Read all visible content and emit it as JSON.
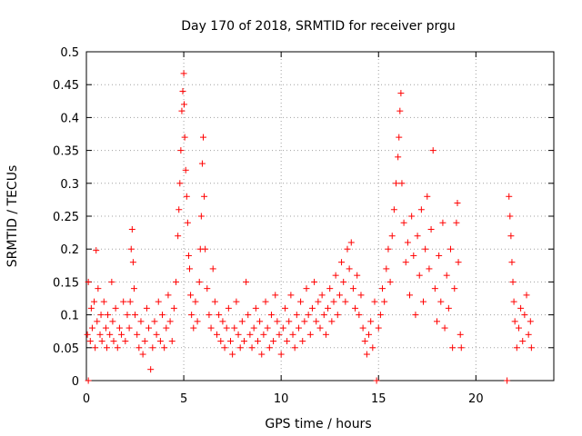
{
  "chart_data": {
    "type": "scatter",
    "title": "Day 170 of 2018, SRMTID for receiver prgu",
    "xlabel": "GPS time / hours",
    "ylabel": "SRMTID / TECUs",
    "xlim": [
      0,
      24
    ],
    "ylim": [
      0,
      0.5
    ],
    "x_ticks": [
      0,
      5,
      10,
      15,
      20
    ],
    "x_tick_labels": [
      "0",
      "5",
      "10",
      "15",
      "20"
    ],
    "y_ticks": [
      0,
      0.05,
      0.1,
      0.15,
      0.2,
      0.25,
      0.3,
      0.35,
      0.4,
      0.45,
      0.5
    ],
    "y_tick_labels": [
      "0",
      "0.05",
      "0.1",
      "0.15",
      "0.2",
      "0.25",
      "0.3",
      "0.35",
      "0.4",
      "0.45",
      "0.5"
    ],
    "grid": true,
    "marker": "plus",
    "color": "#ff0000",
    "series": [
      {
        "name": "SRMTID",
        "points": [
          [
            0.05,
            0.07
          ],
          [
            0.1,
            0.15
          ],
          [
            0.1,
            0.0
          ],
          [
            0.2,
            0.06
          ],
          [
            0.25,
            0.11
          ],
          [
            0.3,
            0.08
          ],
          [
            0.4,
            0.12
          ],
          [
            0.45,
            0.05
          ],
          [
            0.5,
            0.198
          ],
          [
            0.55,
            0.09
          ],
          [
            0.6,
            0.14
          ],
          [
            0.7,
            0.07
          ],
          [
            0.75,
            0.1
          ],
          [
            0.8,
            0.06
          ],
          [
            0.9,
            0.12
          ],
          [
            1.0,
            0.08
          ],
          [
            1.05,
            0.05
          ],
          [
            1.1,
            0.1
          ],
          [
            1.2,
            0.07
          ],
          [
            1.3,
            0.15
          ],
          [
            1.35,
            0.09
          ],
          [
            1.4,
            0.06
          ],
          [
            1.5,
            0.11
          ],
          [
            1.6,
            0.05
          ],
          [
            1.7,
            0.08
          ],
          [
            1.8,
            0.07
          ],
          [
            1.9,
            0.12
          ],
          [
            2.0,
            0.06
          ],
          [
            2.1,
            0.1
          ],
          [
            2.2,
            0.08
          ],
          [
            2.25,
            0.12
          ],
          [
            2.3,
            0.2
          ],
          [
            2.35,
            0.23
          ],
          [
            2.4,
            0.18
          ],
          [
            2.45,
            0.14
          ],
          [
            2.5,
            0.1
          ],
          [
            2.6,
            0.07
          ],
          [
            2.7,
            0.05
          ],
          [
            2.8,
            0.09
          ],
          [
            2.9,
            0.04
          ],
          [
            3.0,
            0.06
          ],
          [
            3.1,
            0.11
          ],
          [
            3.2,
            0.08
          ],
          [
            3.3,
            0.017
          ],
          [
            3.4,
            0.05
          ],
          [
            3.5,
            0.09
          ],
          [
            3.6,
            0.07
          ],
          [
            3.7,
            0.12
          ],
          [
            3.8,
            0.06
          ],
          [
            3.9,
            0.1
          ],
          [
            4.0,
            0.05
          ],
          [
            4.1,
            0.08
          ],
          [
            4.2,
            0.13
          ],
          [
            4.3,
            0.09
          ],
          [
            4.4,
            0.06
          ],
          [
            4.5,
            0.11
          ],
          [
            4.6,
            0.15
          ],
          [
            4.7,
            0.22
          ],
          [
            4.75,
            0.26
          ],
          [
            4.8,
            0.3
          ],
          [
            4.85,
            0.35
          ],
          [
            4.9,
            0.41
          ],
          [
            4.95,
            0.44
          ],
          [
            5.0,
            0.467
          ],
          [
            5.02,
            0.42
          ],
          [
            5.05,
            0.37
          ],
          [
            5.1,
            0.32
          ],
          [
            5.15,
            0.28
          ],
          [
            5.2,
            0.24
          ],
          [
            5.25,
            0.19
          ],
          [
            5.3,
            0.17
          ],
          [
            5.35,
            0.13
          ],
          [
            5.4,
            0.1
          ],
          [
            5.5,
            0.08
          ],
          [
            5.6,
            0.12
          ],
          [
            5.7,
            0.09
          ],
          [
            5.8,
            0.15
          ],
          [
            5.85,
            0.2
          ],
          [
            5.9,
            0.25
          ],
          [
            5.95,
            0.33
          ],
          [
            6.0,
            0.37
          ],
          [
            6.05,
            0.28
          ],
          [
            6.1,
            0.2
          ],
          [
            6.2,
            0.14
          ],
          [
            6.3,
            0.1
          ],
          [
            6.4,
            0.08
          ],
          [
            6.5,
            0.17
          ],
          [
            6.6,
            0.12
          ],
          [
            6.7,
            0.07
          ],
          [
            6.8,
            0.1
          ],
          [
            6.9,
            0.06
          ],
          [
            7.0,
            0.09
          ],
          [
            7.1,
            0.05
          ],
          [
            7.2,
            0.08
          ],
          [
            7.3,
            0.11
          ],
          [
            7.4,
            0.06
          ],
          [
            7.5,
            0.04
          ],
          [
            7.6,
            0.08
          ],
          [
            7.7,
            0.12
          ],
          [
            7.8,
            0.07
          ],
          [
            7.9,
            0.05
          ],
          [
            8.0,
            0.09
          ],
          [
            8.1,
            0.06
          ],
          [
            8.2,
            0.15
          ],
          [
            8.3,
            0.1
          ],
          [
            8.4,
            0.07
          ],
          [
            8.5,
            0.05
          ],
          [
            8.6,
            0.08
          ],
          [
            8.7,
            0.11
          ],
          [
            8.8,
            0.06
          ],
          [
            8.9,
            0.09
          ],
          [
            9.0,
            0.04
          ],
          [
            9.1,
            0.07
          ],
          [
            9.2,
            0.12
          ],
          [
            9.3,
            0.08
          ],
          [
            9.4,
            0.05
          ],
          [
            9.5,
            0.1
          ],
          [
            9.6,
            0.06
          ],
          [
            9.7,
            0.13
          ],
          [
            9.8,
            0.09
          ],
          [
            9.9,
            0.07
          ],
          [
            10.0,
            0.04
          ],
          [
            10.1,
            0.08
          ],
          [
            10.2,
            0.11
          ],
          [
            10.3,
            0.06
          ],
          [
            10.4,
            0.09
          ],
          [
            10.5,
            0.13
          ],
          [
            10.6,
            0.07
          ],
          [
            10.7,
            0.05
          ],
          [
            10.8,
            0.1
          ],
          [
            10.9,
            0.08
          ],
          [
            11.0,
            0.12
          ],
          [
            11.1,
            0.06
          ],
          [
            11.2,
            0.09
          ],
          [
            11.3,
            0.14
          ],
          [
            11.4,
            0.1
          ],
          [
            11.5,
            0.07
          ],
          [
            11.6,
            0.11
          ],
          [
            11.7,
            0.15
          ],
          [
            11.8,
            0.09
          ],
          [
            11.9,
            0.12
          ],
          [
            12.0,
            0.08
          ],
          [
            12.1,
            0.13
          ],
          [
            12.2,
            0.1
          ],
          [
            12.3,
            0.07
          ],
          [
            12.4,
            0.11
          ],
          [
            12.5,
            0.14
          ],
          [
            12.6,
            0.09
          ],
          [
            12.7,
            0.12
          ],
          [
            12.8,
            0.16
          ],
          [
            12.9,
            0.1
          ],
          [
            13.0,
            0.13
          ],
          [
            13.1,
            0.18
          ],
          [
            13.2,
            0.15
          ],
          [
            13.3,
            0.12
          ],
          [
            13.4,
            0.2
          ],
          [
            13.5,
            0.17
          ],
          [
            13.6,
            0.21
          ],
          [
            13.7,
            0.14
          ],
          [
            13.8,
            0.11
          ],
          [
            13.9,
            0.16
          ],
          [
            14.0,
            0.1
          ],
          [
            14.1,
            0.13
          ],
          [
            14.2,
            0.08
          ],
          [
            14.3,
            0.06
          ],
          [
            14.4,
            0.04
          ],
          [
            14.5,
            0.07
          ],
          [
            14.6,
            0.09
          ],
          [
            14.7,
            0.05
          ],
          [
            14.8,
            0.12
          ],
          [
            14.9,
            0.0
          ],
          [
            15.0,
            0.08
          ],
          [
            15.1,
            0.1
          ],
          [
            15.2,
            0.14
          ],
          [
            15.3,
            0.12
          ],
          [
            15.4,
            0.17
          ],
          [
            15.5,
            0.2
          ],
          [
            15.6,
            0.15
          ],
          [
            15.7,
            0.22
          ],
          [
            15.8,
            0.26
          ],
          [
            15.9,
            0.3
          ],
          [
            16.0,
            0.34
          ],
          [
            16.05,
            0.37
          ],
          [
            16.1,
            0.41
          ],
          [
            16.15,
            0.437
          ],
          [
            16.2,
            0.3
          ],
          [
            16.3,
            0.24
          ],
          [
            16.4,
            0.18
          ],
          [
            16.5,
            0.21
          ],
          [
            16.6,
            0.13
          ],
          [
            16.7,
            0.25
          ],
          [
            16.8,
            0.19
          ],
          [
            16.9,
            0.1
          ],
          [
            17.0,
            0.22
          ],
          [
            17.1,
            0.16
          ],
          [
            17.2,
            0.26
          ],
          [
            17.3,
            0.12
          ],
          [
            17.4,
            0.2
          ],
          [
            17.5,
            0.28
          ],
          [
            17.6,
            0.17
          ],
          [
            17.7,
            0.23
          ],
          [
            17.8,
            0.35
          ],
          [
            17.9,
            0.14
          ],
          [
            18.0,
            0.09
          ],
          [
            18.1,
            0.19
          ],
          [
            18.2,
            0.12
          ],
          [
            18.3,
            0.24
          ],
          [
            18.4,
            0.08
          ],
          [
            18.5,
            0.16
          ],
          [
            18.6,
            0.11
          ],
          [
            18.7,
            0.2
          ],
          [
            18.8,
            0.05
          ],
          [
            18.9,
            0.14
          ],
          [
            19.0,
            0.24
          ],
          [
            19.05,
            0.27
          ],
          [
            19.1,
            0.18
          ],
          [
            19.2,
            0.07
          ],
          [
            19.25,
            0.05
          ],
          [
            21.6,
            0.0
          ],
          [
            21.7,
            0.28
          ],
          [
            21.75,
            0.25
          ],
          [
            21.8,
            0.22
          ],
          [
            21.85,
            0.18
          ],
          [
            21.9,
            0.15
          ],
          [
            21.95,
            0.12
          ],
          [
            22.0,
            0.09
          ],
          [
            22.1,
            0.05
          ],
          [
            22.2,
            0.08
          ],
          [
            22.3,
            0.11
          ],
          [
            22.4,
            0.06
          ],
          [
            22.5,
            0.1
          ],
          [
            22.6,
            0.13
          ],
          [
            22.7,
            0.07
          ],
          [
            22.8,
            0.09
          ],
          [
            22.85,
            0.05
          ]
        ]
      }
    ]
  }
}
